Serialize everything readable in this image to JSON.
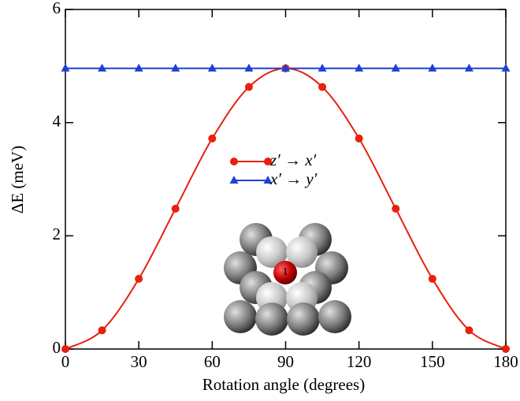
{
  "chart_data": {
    "type": "line",
    "x_label": "Rotation angle (degrees)",
    "y_label": "ΔE (meV)",
    "x": [
      0,
      15,
      30,
      45,
      60,
      75,
      90,
      105,
      120,
      135,
      150,
      165,
      180
    ],
    "series": [
      {
        "name": "z′ → x′",
        "color": "#e8200c",
        "marker": "circle",
        "values": [
          0,
          0.33,
          1.24,
          2.48,
          3.72,
          4.63,
          4.96,
          4.63,
          3.72,
          2.48,
          1.24,
          0.33,
          0
        ]
      },
      {
        "name": "x′ → y′",
        "color": "#1f3fd6",
        "marker": "triangle",
        "values": [
          4.96,
          4.96,
          4.96,
          4.96,
          4.96,
          4.96,
          4.96,
          4.96,
          4.96,
          4.96,
          4.96,
          4.96,
          4.96
        ]
      }
    ],
    "xlim": [
      0,
      180
    ],
    "xticks": [
      0,
      30,
      60,
      90,
      120,
      150,
      180
    ],
    "ylim": [
      0,
      6
    ],
    "yticks": [
      0,
      2,
      4,
      6
    ],
    "annotations": [
      "1"
    ]
  }
}
